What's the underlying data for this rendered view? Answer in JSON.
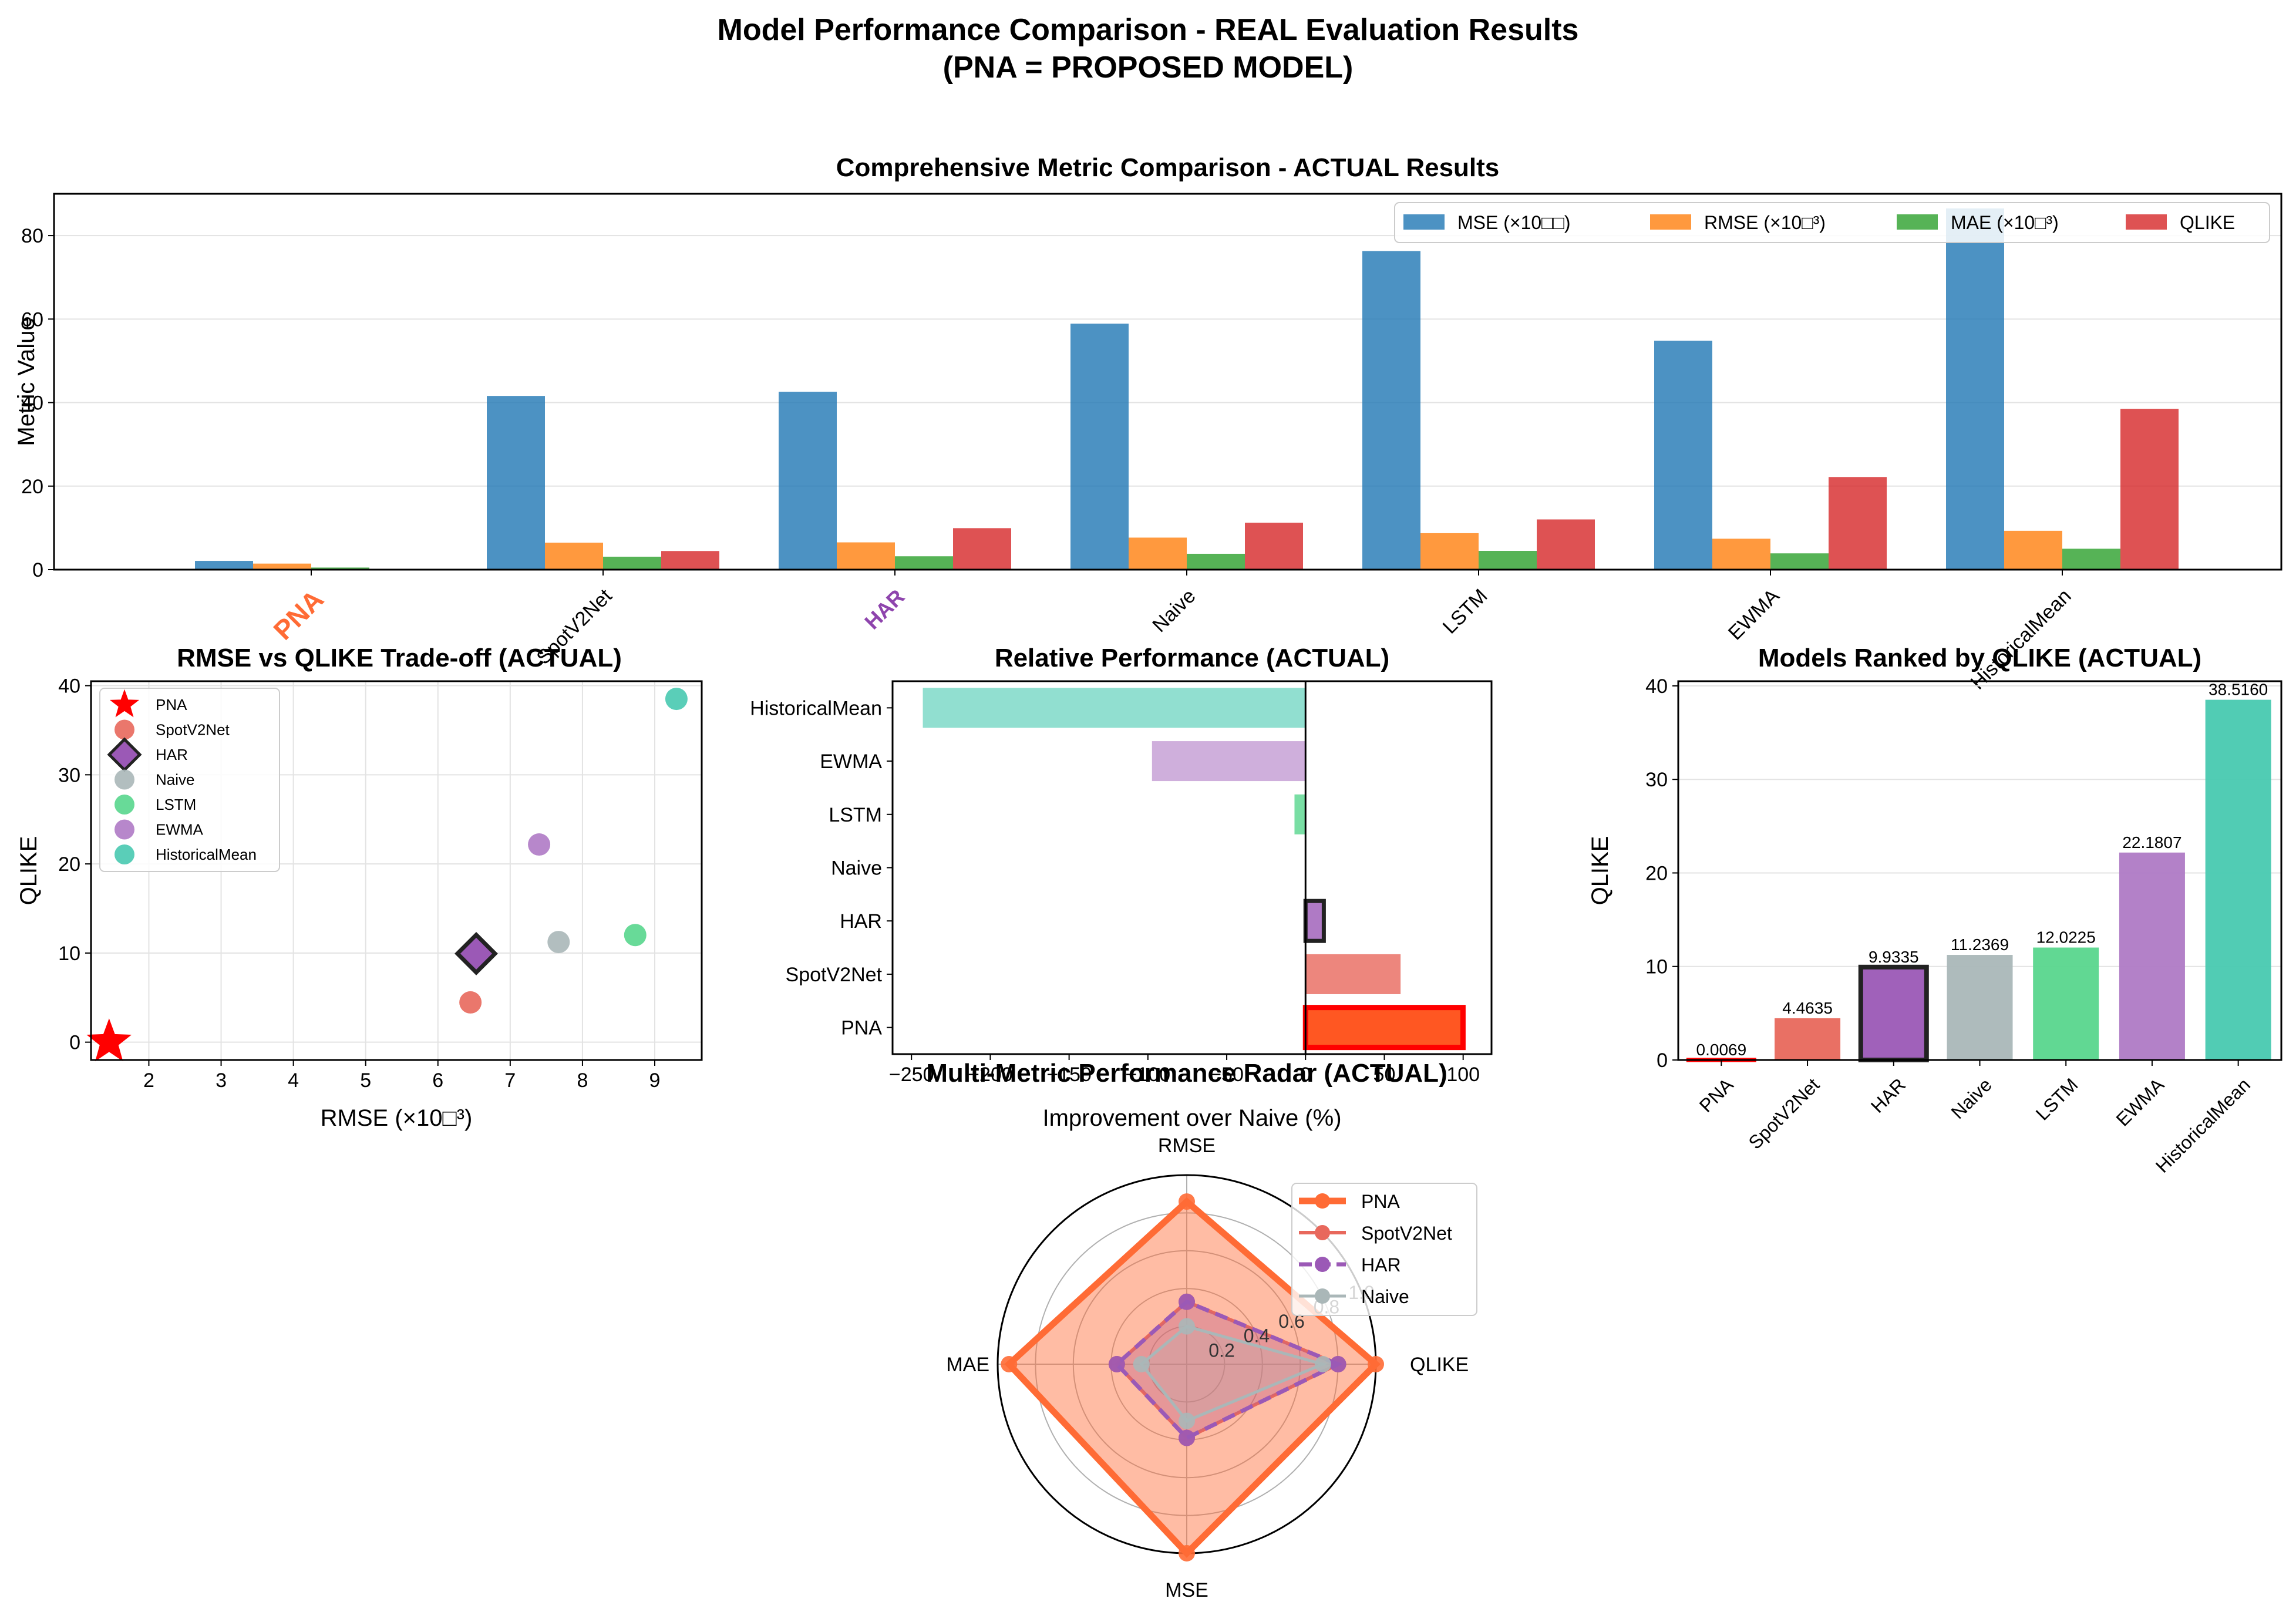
{
  "figure": {
    "title_line1": "Model Performance Comparison - REAL Evaluation Results",
    "title_line2": "(PNA = PROPOSED MODEL)"
  },
  "chart_data": [
    {
      "id": "grouped",
      "type": "bar",
      "title": "Comprehensive Metric Comparison - ACTUAL Results",
      "xlabel": "",
      "ylabel": "Metric Value",
      "ylim": [
        0,
        90
      ],
      "yticks": [
        0,
        20,
        40,
        60,
        80
      ],
      "grid": true,
      "legend_position": "top-right",
      "categories": [
        "PNA",
        "SpotV2Net",
        "HAR",
        "Naive",
        "LSTM",
        "EWMA",
        "HistoricalMean"
      ],
      "highlight_categories": {
        "PNA": "#ff6b35",
        "HAR": "#8e44ad"
      },
      "series": [
        {
          "name": "MSE (×10□□)",
          "color": "#1f77b4",
          "values": [
            2.1,
            41.6,
            42.6,
            58.9,
            76.3,
            54.8,
            86.5
          ]
        },
        {
          "name": "RMSE (×10□³)",
          "color": "#ff7f0e",
          "values": [
            1.45,
            6.45,
            6.53,
            7.67,
            8.73,
            7.4,
            9.3
          ]
        },
        {
          "name": "MAE (×10□³)",
          "color": "#2ca02c",
          "values": [
            0.5,
            3.1,
            3.2,
            3.8,
            4.5,
            3.9,
            5.0
          ]
        },
        {
          "name": "QLIKE",
          "color": "#d62728",
          "values": [
            0.0069,
            4.4635,
            9.9335,
            11.2369,
            12.0225,
            22.1807,
            38.516
          ]
        }
      ]
    },
    {
      "id": "scatter",
      "type": "scatter",
      "title": "RMSE vs QLIKE Trade-off (ACTUAL)",
      "xlabel": "RMSE (×10□³)",
      "ylabel": "QLIKE",
      "xlim": [
        1.2,
        9.65
      ],
      "ylim": [
        -2,
        40.5
      ],
      "xticks": [
        2,
        3,
        4,
        5,
        6,
        7,
        8,
        9
      ],
      "yticks": [
        0,
        10,
        20,
        30,
        40
      ],
      "grid": true,
      "legend_position": "top-left",
      "points": [
        {
          "name": "PNA",
          "x": 1.45,
          "y": 0.0069,
          "color": "#ff0000",
          "marker": "star"
        },
        {
          "name": "SpotV2Net",
          "x": 6.45,
          "y": 4.4635,
          "color": "#e8685c",
          "marker": "circle"
        },
        {
          "name": "HAR",
          "x": 6.53,
          "y": 9.9335,
          "color": "#9b59b6",
          "marker": "diamond"
        },
        {
          "name": "Naive",
          "x": 7.67,
          "y": 11.2369,
          "color": "#aab7b8",
          "marker": "circle"
        },
        {
          "name": "LSTM",
          "x": 8.73,
          "y": 12.0225,
          "color": "#58d68d",
          "marker": "circle"
        },
        {
          "name": "EWMA",
          "x": 7.4,
          "y": 22.1807,
          "color": "#af7ac5",
          "marker": "circle"
        },
        {
          "name": "HistoricalMean",
          "x": 9.3,
          "y": 38.516,
          "color": "#48c9b0",
          "marker": "circle"
        }
      ]
    },
    {
      "id": "hbar",
      "type": "bar",
      "orientation": "horizontal",
      "title": "Relative Performance (ACTUAL)",
      "xlabel": "Improvement over Naive (%)",
      "ylabel": "",
      "xlim": [
        -262,
        118
      ],
      "xticks": [
        -250,
        -200,
        -150,
        -100,
        -50,
        0,
        50,
        100
      ],
      "categories": [
        "PNA",
        "SpotV2Net",
        "HAR",
        "Naive",
        "LSTM",
        "EWMA",
        "HistoricalMean"
      ],
      "values": [
        99.9,
        60.3,
        11.6,
        0,
        -7.0,
        -97.4,
        -242.8
      ],
      "colors": [
        "#ff5722",
        "#e8685c",
        "#9b59b6",
        "#aab7b8",
        "#58d68d",
        "#c39bd3",
        "#76d7c4"
      ]
    },
    {
      "id": "ranked",
      "type": "bar",
      "title": "Models Ranked by QLIKE (ACTUAL)",
      "xlabel": "",
      "ylabel": "QLIKE",
      "ylim": [
        0,
        40.5
      ],
      "yticks": [
        0,
        10,
        20,
        30,
        40
      ],
      "grid": true,
      "categories": [
        "PNA",
        "SpotV2Net",
        "HAR",
        "Naive",
        "LSTM",
        "EWMA",
        "HistoricalMean"
      ],
      "values": [
        0.0069,
        4.4635,
        9.9335,
        11.2369,
        12.0225,
        22.1807,
        38.516
      ],
      "labels": [
        "0.0069",
        "4.4635",
        "9.9335",
        "11.2369",
        "12.0225",
        "22.1807",
        "38.5160"
      ],
      "colors": [
        "#ff5722",
        "#e8685c",
        "#9b59b6",
        "#aab7b8",
        "#58d68d",
        "#af7ac5",
        "#48c9b0"
      ]
    },
    {
      "id": "radar",
      "type": "radar",
      "title": "Multi-Metric Performance Radar (ACTUAL)",
      "axes": [
        "QLIKE",
        "RMSE",
        "MAE",
        "MSE"
      ],
      "rticks": [
        "0.2",
        "0.4",
        "0.6",
        "0.8",
        "1.0"
      ],
      "legend_position": "top-right",
      "series": [
        {
          "name": "PNA",
          "color": "#ff6b35",
          "values": [
            1.0,
            0.86,
            0.94,
            1.0
          ]
        },
        {
          "name": "SpotV2Net",
          "color": "#e8685c",
          "values": [
            0.8,
            0.33,
            0.37,
            0.39
          ]
        },
        {
          "name": "HAR",
          "color": "#9b59b6",
          "values": [
            0.8,
            0.33,
            0.37,
            0.39
          ]
        },
        {
          "name": "Naive",
          "color": "#aab7b8",
          "values": [
            0.72,
            0.2,
            0.24,
            0.3
          ]
        }
      ]
    }
  ]
}
